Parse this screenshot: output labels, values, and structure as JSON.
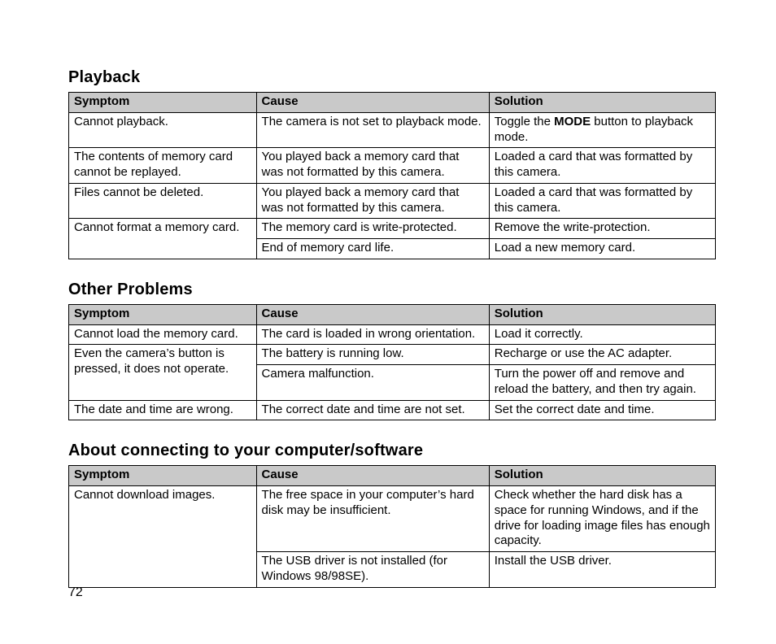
{
  "pageNumber": "72",
  "colors": {
    "headerBg": "#c9c9c9",
    "border": "#000000",
    "text": "#000000",
    "background": "#ffffff"
  },
  "sections": [
    {
      "title": "Playback",
      "headers": [
        "Symptom",
        "Cause",
        "Solution"
      ],
      "rows": [
        {
          "symptom": "Cannot playback.",
          "cause": "The camera is not set to playback mode.",
          "solution_pre": "Toggle the ",
          "solution_bold": "MODE",
          "solution_post": " button to playback mode."
        },
        {
          "symptom": "The contents of memory card cannot be replayed.",
          "cause": "You played back a memory card that was not formatted by this camera.",
          "solution": "Loaded a card that was formatted by this camera."
        },
        {
          "symptom": "Files cannot be deleted.",
          "cause": "You played back a memory card that was not formatted by this camera.",
          "solution": "Loaded a card that was formatted by this camera."
        },
        {
          "symptom_rowspan": "Cannot format a memory card.",
          "sub": [
            {
              "cause": "The memory card is write-protected.",
              "solution": "Remove the write-protection."
            },
            {
              "cause": "End of memory card life.",
              "solution": "Load a new memory card."
            }
          ]
        }
      ]
    },
    {
      "title": "Other Problems",
      "headers": [
        "Symptom",
        "Cause",
        "Solution"
      ],
      "rows": [
        {
          "symptom": "Cannot load the memory card.",
          "cause": "The card is loaded in wrong orientation.",
          "solution": "Load it correctly."
        },
        {
          "symptom_rowspan": "Even the camera’s button is pressed, it does not operate.",
          "sub": [
            {
              "cause": "The battery is running low.",
              "solution": "Recharge or use the AC adapter."
            },
            {
              "cause": "Camera malfunction.",
              "solution": "Turn the power off and remove and reload the battery, and then try again."
            }
          ]
        },
        {
          "symptom": "The date and time are wrong.",
          "cause": "The correct date and time are not set.",
          "solution": "Set the correct date and time."
        }
      ]
    },
    {
      "title": "About connecting to your computer/software",
      "headers": [
        "Symptom",
        "Cause",
        "Solution"
      ],
      "rows": [
        {
          "symptom_rowspan": "Cannot download images.",
          "sub": [
            {
              "cause": "The free space in your computer’s hard disk may be insufficient.",
              "solution": "Check whether the hard disk has a space for running Windows, and if the drive for loading image files has enough capacity."
            },
            {
              "cause": "The USB driver is not installed (for Windows 98/98SE).",
              "solution": "Install the USB driver."
            }
          ]
        }
      ]
    }
  ]
}
